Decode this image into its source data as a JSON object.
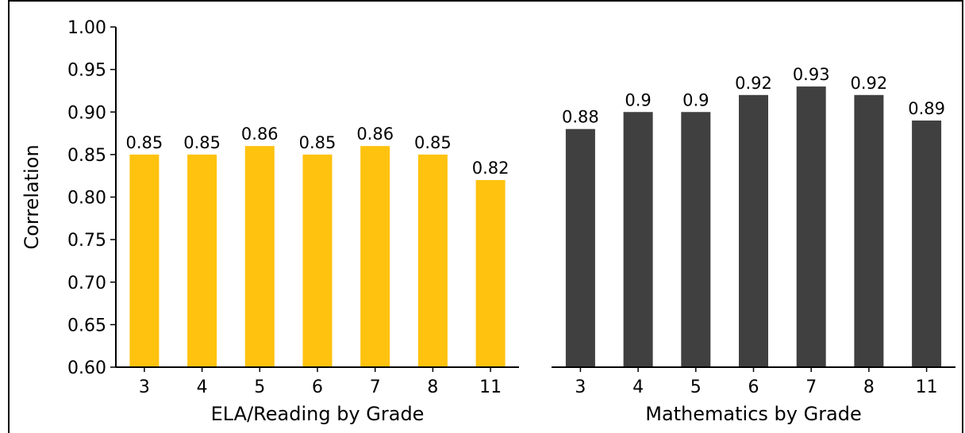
{
  "chart_data": [
    {
      "type": "bar",
      "categories": [
        "3",
        "4",
        "5",
        "6",
        "7",
        "8",
        "11"
      ],
      "values": [
        0.85,
        0.85,
        0.86,
        0.85,
        0.86,
        0.85,
        0.82
      ],
      "data_labels": [
        "0.85",
        "0.85",
        "0.86",
        "0.85",
        "0.86",
        "0.85",
        "0.82"
      ],
      "xlabel": "ELA/Reading by Grade",
      "ylabel": "Correlation",
      "ylim": [
        0.6,
        1.0
      ],
      "yticks": [
        "0.60",
        "0.65",
        "0.70",
        "0.75",
        "0.80",
        "0.85",
        "0.90",
        "0.95",
        "1.00"
      ],
      "color": "#FFC20E",
      "grid": false
    },
    {
      "type": "bar",
      "categories": [
        "3",
        "4",
        "5",
        "6",
        "7",
        "8",
        "11"
      ],
      "values": [
        0.88,
        0.9,
        0.9,
        0.92,
        0.93,
        0.92,
        0.89
      ],
      "data_labels": [
        "0.88",
        "0.9",
        "0.9",
        "0.92",
        "0.93",
        "0.92",
        "0.89"
      ],
      "xlabel": "Mathematics by Grade",
      "ylabel": "",
      "ylim": [
        0.6,
        1.0
      ],
      "color": "#404040",
      "grid": false
    }
  ]
}
